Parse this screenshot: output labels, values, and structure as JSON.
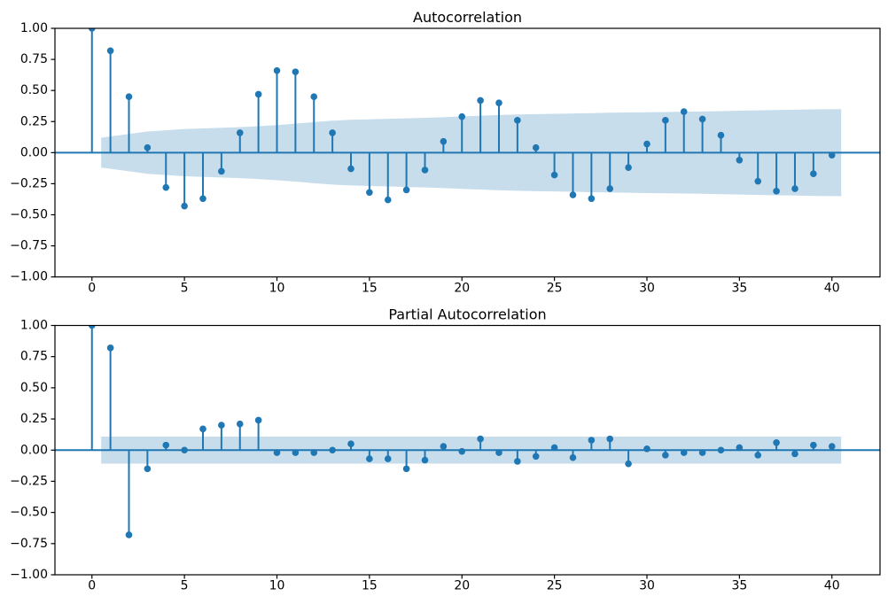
{
  "figure": {
    "background_color": "#ffffff",
    "accent_color": "#1f77b4",
    "band_color": "rgba(31,119,180,0.25)",
    "spine_color": "#000000",
    "text_color": "#000000"
  },
  "chart_data": [
    {
      "type": "stem",
      "title": "Autocorrelation",
      "xlabel": "",
      "ylabel": "",
      "grid": false,
      "legend": null,
      "xlim": [
        -2.0,
        42.6
      ],
      "ylim": [
        -1.0,
        1.0
      ],
      "x": [
        0,
        1,
        2,
        3,
        4,
        5,
        6,
        7,
        8,
        9,
        10,
        11,
        12,
        13,
        14,
        15,
        16,
        17,
        18,
        19,
        20,
        21,
        22,
        23,
        24,
        25,
        26,
        27,
        28,
        29,
        30,
        31,
        32,
        33,
        34,
        35,
        36,
        37,
        38,
        39,
        40
      ],
      "values": [
        1.0,
        0.82,
        0.45,
        0.04,
        -0.28,
        -0.43,
        -0.37,
        -0.15,
        0.16,
        0.47,
        0.66,
        0.65,
        0.45,
        0.16,
        -0.13,
        -0.32,
        -0.38,
        -0.3,
        -0.14,
        0.09,
        0.29,
        0.42,
        0.4,
        0.26,
        0.04,
        -0.18,
        -0.34,
        -0.37,
        -0.29,
        -0.12,
        0.07,
        0.26,
        0.33,
        0.27,
        0.14,
        -0.06,
        -0.23,
        -0.31,
        -0.29,
        -0.17,
        -0.02
      ],
      "confidence_band": {
        "x": [
          0.5,
          2,
          3,
          4,
          5,
          6,
          7,
          8,
          9,
          10,
          11,
          12,
          13,
          14,
          15,
          16,
          17,
          18,
          19,
          20,
          21,
          22,
          23,
          24,
          25,
          26,
          27,
          28,
          29,
          30,
          31,
          32,
          33,
          34,
          35,
          36,
          37,
          38,
          39,
          40.5
        ],
        "half_widths": [
          0.12,
          0.15,
          0.17,
          0.18,
          0.19,
          0.195,
          0.2,
          0.205,
          0.213,
          0.222,
          0.233,
          0.246,
          0.257,
          0.264,
          0.268,
          0.272,
          0.276,
          0.28,
          0.285,
          0.291,
          0.297,
          0.303,
          0.307,
          0.31,
          0.312,
          0.315,
          0.318,
          0.321,
          0.323,
          0.325,
          0.327,
          0.329,
          0.331,
          0.334,
          0.337,
          0.34,
          0.343,
          0.345,
          0.348,
          0.35
        ],
        "symmetric_about_zero": true
      },
      "xticks": {
        "values": [
          0,
          5,
          10,
          15,
          20,
          25,
          30,
          35,
          40
        ],
        "labels": [
          "0",
          "5",
          "10",
          "15",
          "20",
          "25",
          "30",
          "35",
          "40"
        ]
      },
      "yticks": {
        "values": [
          1.0,
          0.75,
          0.5,
          0.25,
          0.0,
          -0.25,
          -0.5,
          -0.75,
          -1.0
        ],
        "labels": [
          "1.00",
          "0.75",
          "0.50",
          "0.25",
          "0.00",
          "−0.25",
          "−0.50",
          "−0.75",
          "−1.00"
        ]
      }
    },
    {
      "type": "stem",
      "title": "Partial Autocorrelation",
      "xlabel": "",
      "ylabel": "",
      "grid": false,
      "legend": null,
      "xlim": [
        -2.0,
        42.6
      ],
      "ylim": [
        -1.0,
        1.0
      ],
      "x": [
        0,
        1,
        2,
        3,
        4,
        5,
        6,
        7,
        8,
        9,
        10,
        11,
        12,
        13,
        14,
        15,
        16,
        17,
        18,
        19,
        20,
        21,
        22,
        23,
        24,
        25,
        26,
        27,
        28,
        29,
        30,
        31,
        32,
        33,
        34,
        35,
        36,
        37,
        38,
        39,
        40
      ],
      "values": [
        1.0,
        0.82,
        -0.68,
        -0.15,
        0.04,
        0.0,
        0.17,
        0.2,
        0.21,
        0.24,
        -0.02,
        -0.02,
        -0.02,
        0.0,
        0.05,
        -0.07,
        -0.07,
        -0.15,
        -0.08,
        0.03,
        -0.01,
        0.09,
        -0.02,
        -0.09,
        -0.05,
        0.02,
        -0.06,
        0.08,
        0.09,
        -0.11,
        0.01,
        -0.04,
        -0.02,
        -0.02,
        0.0,
        0.02,
        -0.04,
        0.06,
        -0.03,
        0.04,
        0.03
      ],
      "confidence_band": {
        "x": [
          0.5,
          2,
          3,
          4,
          5,
          6,
          7,
          8,
          9,
          10,
          11,
          12,
          13,
          14,
          15,
          16,
          17,
          18,
          19,
          20,
          21,
          22,
          23,
          24,
          25,
          26,
          27,
          28,
          29,
          30,
          31,
          32,
          33,
          34,
          35,
          36,
          37,
          38,
          39,
          40.5
        ],
        "half_widths": [
          0.108,
          0.108,
          0.108,
          0.108,
          0.108,
          0.108,
          0.108,
          0.108,
          0.108,
          0.108,
          0.108,
          0.108,
          0.108,
          0.108,
          0.108,
          0.108,
          0.108,
          0.108,
          0.108,
          0.108,
          0.108,
          0.108,
          0.108,
          0.108,
          0.108,
          0.108,
          0.108,
          0.108,
          0.108,
          0.108,
          0.108,
          0.108,
          0.108,
          0.108,
          0.108,
          0.108,
          0.108,
          0.108,
          0.108,
          0.108
        ],
        "symmetric_about_zero": true
      },
      "xticks": {
        "values": [
          0,
          5,
          10,
          15,
          20,
          25,
          30,
          35,
          40
        ],
        "labels": [
          "0",
          "5",
          "10",
          "15",
          "20",
          "25",
          "30",
          "35",
          "40"
        ]
      },
      "yticks": {
        "values": [
          1.0,
          0.75,
          0.5,
          0.25,
          0.0,
          -0.25,
          -0.5,
          -0.75,
          -1.0
        ],
        "labels": [
          "1.00",
          "0.75",
          "0.50",
          "0.25",
          "0.00",
          "−0.25",
          "−0.50",
          "−0.75",
          "−1.00"
        ]
      }
    }
  ]
}
